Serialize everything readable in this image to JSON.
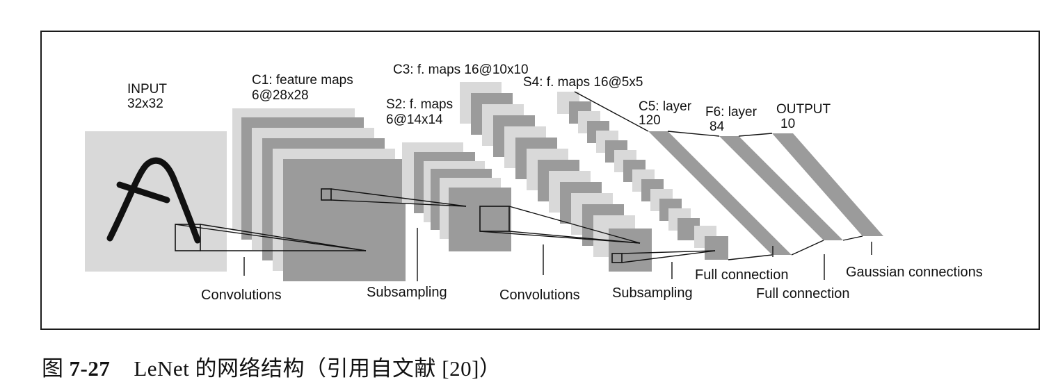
{
  "figure": {
    "layer_labels": {
      "input_name": "INPUT",
      "input_size": "32x32",
      "c1_name": "C1: feature maps",
      "c1_size": "6@28x28",
      "s2_name": "S2: f. maps",
      "s2_size": "6@14x14",
      "c3": "C3: f. maps 16@10x10",
      "s4": "S4: f. maps 16@5x5",
      "c5_name": "C5: layer",
      "c5_size": "120",
      "f6_name": "F6: layer",
      "f6_size": "84",
      "output_name": "OUTPUT",
      "output_size": "10"
    },
    "operations": {
      "conv1": "Convolutions",
      "sub1": "Subsampling",
      "conv2": "Convolutions",
      "sub2": "Subsampling",
      "full1": "Full connection",
      "full2": "Full connection",
      "gauss": "Gaussian connections"
    },
    "colors": {
      "light_map": "#d9d9d9",
      "dark_map": "#9b9b9b",
      "stroke": "#111111"
    }
  },
  "caption": {
    "prefix": "图",
    "number": "7-27",
    "text": "LeNet 的网络结构（引用自文献 [20]）"
  }
}
